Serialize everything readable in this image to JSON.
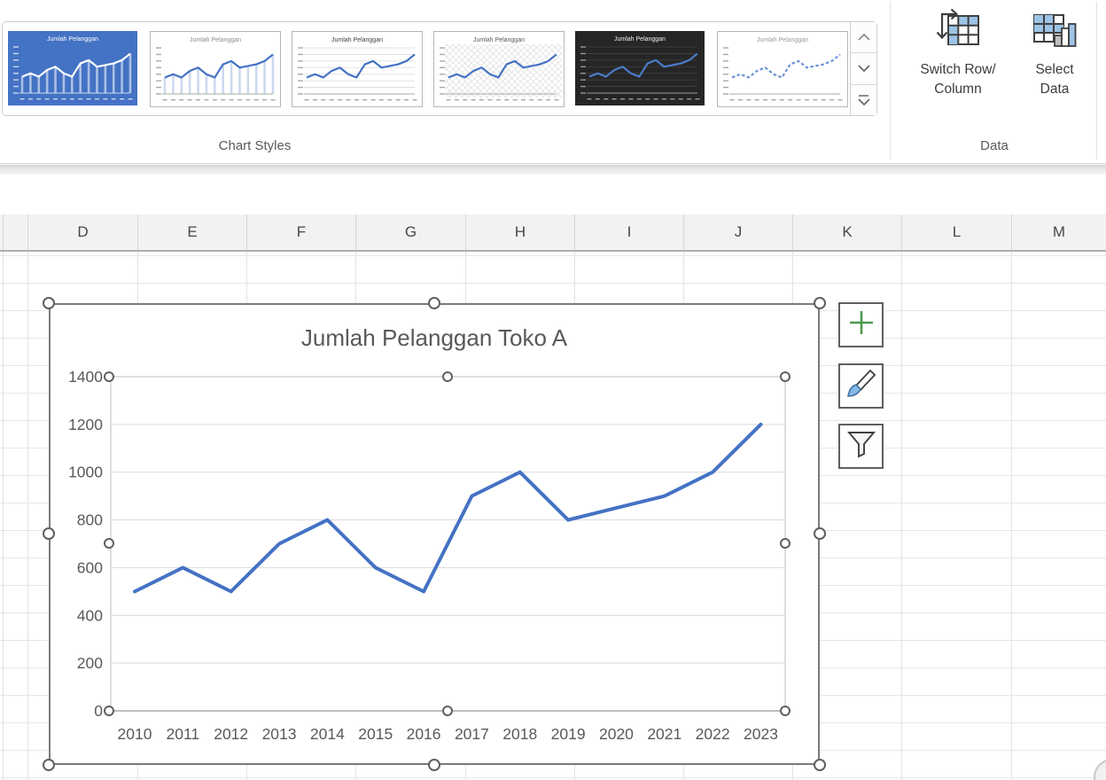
{
  "ribbon": {
    "chart_styles_group": {
      "label": "Chart Styles"
    },
    "data_group": {
      "label": "Data",
      "switch_button": {
        "line1": "Switch Row/",
        "line2": "Column"
      },
      "select_button": {
        "line1": "Select",
        "line2": "Data"
      }
    },
    "gallery": {
      "scroll_icons": {
        "up": "chevron-up-icon",
        "down": "chevron-down-icon",
        "more": "chevron-more-icon"
      },
      "thumbnails": [
        {
          "name": "style-blue-fill",
          "title": "Jumlah Pelanggan",
          "selected": true,
          "bg": "#4472C4",
          "line": "#FFFFFF",
          "title_color": "#FFFFFF",
          "axis_color": "#CBD8F0",
          "grid": false,
          "grid_color": "#6688CF",
          "drop_lines": true,
          "drop_color": "rgba(255,255,255,0.55)",
          "dashed": false,
          "hatch": false
        },
        {
          "name": "style-drop-lines",
          "title": "Jumlah Pelanggan",
          "selected": false,
          "bg": "#FFFFFF",
          "line": "#4472C4",
          "title_color": "#8c8c8c",
          "axis_color": "#a8a8a8",
          "grid": false,
          "grid_color": "#e3e3e3",
          "drop_lines": true,
          "drop_color": "#ccd9ee",
          "dashed": false,
          "hatch": false
        },
        {
          "name": "style-gridlines",
          "title": "Jumlah Pelanggan",
          "selected": false,
          "bg": "#FFFFFF",
          "line": "#4472C4",
          "title_color": "#404040",
          "axis_color": "#a8a8a8",
          "grid": true,
          "grid_color": "#d9d9d9",
          "drop_lines": false,
          "drop_color": "#ccd9ee",
          "dashed": false,
          "hatch": false
        },
        {
          "name": "style-hatched",
          "title": "Jumlah Pelanggan",
          "selected": false,
          "bg": "#FFFFFF",
          "line": "#4472C4",
          "title_color": "#595959",
          "axis_color": "#a8a8a8",
          "grid": false,
          "grid_color": "#e0e0e0",
          "drop_lines": false,
          "drop_color": "#ccd9ee",
          "dashed": false,
          "hatch": true
        },
        {
          "name": "style-dark",
          "title": "Jumlah Pelanggan",
          "selected": false,
          "bg": "#262626",
          "line": "#4C7CCB",
          "title_color": "#f0f0f0",
          "axis_color": "#9a9a9a",
          "grid": true,
          "grid_color": "#424242",
          "drop_lines": false,
          "drop_color": "#ccd9ee",
          "dashed": false,
          "hatch": false
        },
        {
          "name": "style-dashed",
          "title": "Jumlah Pelanggan",
          "selected": false,
          "bg": "#FFFFFF",
          "line": "#6B93D6",
          "title_color": "#9a9a9a",
          "axis_color": "#a8a8a8",
          "grid": false,
          "grid_color": "#e3e3e3",
          "drop_lines": false,
          "drop_color": "#ccd9ee",
          "dashed": true,
          "hatch": false
        }
      ]
    },
    "icons": {
      "switch_row_column": "table-swap-arrow-icon",
      "select_data": "table-bars-icon",
      "chart_elements": "plus-icon",
      "chart_styles": "brush-icon",
      "chart_filters": "funnel-icon"
    }
  },
  "sheet": {
    "columns": [
      "D",
      "E",
      "F",
      "G",
      "H",
      "I",
      "J",
      "K",
      "L",
      "M"
    ]
  },
  "chart": {
    "title": "Jumlah Pelanggan Toko A",
    "y_axis_ticks": [
      "1400",
      "1200",
      "1000",
      "800",
      "600",
      "400",
      "200",
      "0"
    ],
    "line_width": 4
  },
  "chart_data": {
    "type": "line",
    "title": "Jumlah Pelanggan Toko A",
    "categories": [
      "2010",
      "2011",
      "2012",
      "2013",
      "2014",
      "2015",
      "2016",
      "2017",
      "2018",
      "2019",
      "2020",
      "2021",
      "2022",
      "2023"
    ],
    "series": [
      {
        "name": "Jumlah Pelanggan Toko A",
        "values": [
          500,
          600,
          500,
          700,
          800,
          600,
          500,
          900,
          1000,
          800,
          850,
          900,
          1000,
          1200
        ]
      }
    ],
    "ylim": [
      0,
      1400
    ],
    "ytick_step": 200,
    "grid": true,
    "legend": "none",
    "line_color": "#4472C4",
    "label_color": "#595959"
  },
  "colors": {
    "accent_blue": "#4472C4",
    "icon_cell_blue": "#9DC3E6",
    "plus_green": "#4C9A4F",
    "brush_blue": "#85B7E8",
    "title_gray": "#595959"
  }
}
